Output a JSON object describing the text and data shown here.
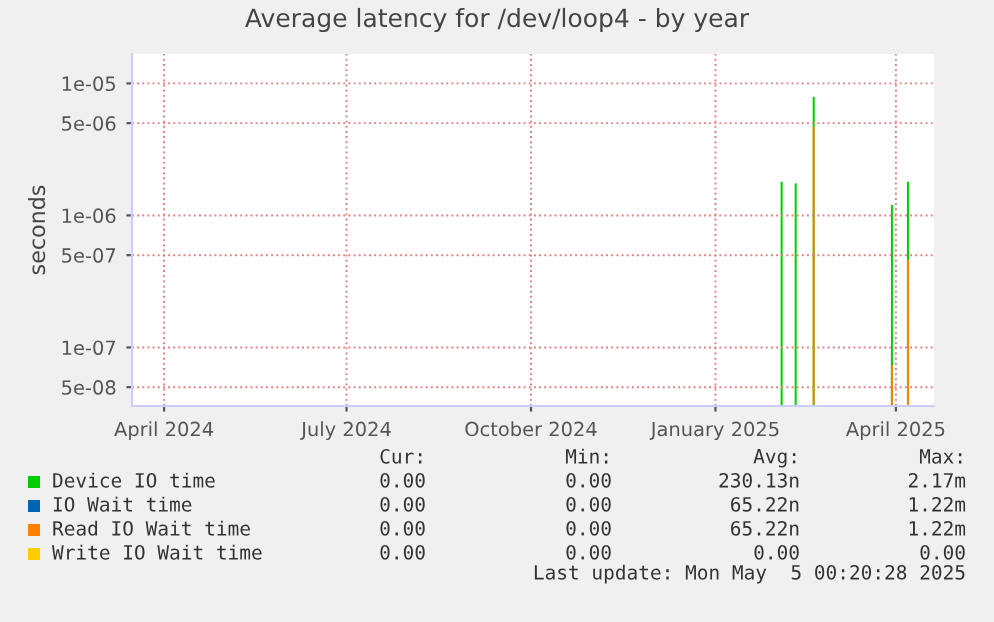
{
  "chart_data": {
    "type": "bar",
    "title": "Average latency for /dev/loop4 - by year",
    "ylabel": "seconds",
    "log": "y",
    "grid": true,
    "legend": "bottom",
    "xlim": [
      "2024-03-31",
      "2025-05-05"
    ],
    "xticks": [
      {
        "value": "2024-04-16",
        "label": "April 2024"
      },
      {
        "value": "2024-07-16",
        "label": "July 2024"
      },
      {
        "value": "2024-10-16",
        "label": "October 2024"
      },
      {
        "value": "2025-01-16",
        "label": "January 2025"
      },
      {
        "value": "2025-04-16",
        "label": "April 2025"
      }
    ],
    "ylim": [
      3.6e-08,
      1.67e-05
    ],
    "yticks": [
      {
        "value": 5e-08,
        "label": "5e-08"
      },
      {
        "value": 1e-07,
        "label": "1e-07"
      },
      {
        "value": 5e-07,
        "label": "5e-07"
      },
      {
        "value": 1e-06,
        "label": "1e-06"
      },
      {
        "value": 5e-06,
        "label": "5e-06"
      },
      {
        "value": 1e-05,
        "label": "1e-05"
      }
    ],
    "series": [
      {
        "name": "Device IO time",
        "color": "#00cc00",
        "x": [
          "2025-02-18",
          "2025-02-25",
          "2025-03-06",
          "2025-04-14",
          "2025-04-22"
        ],
        "values": [
          1.8e-06,
          1.75e-06,
          7.9e-06,
          1.2e-06,
          1.8e-06
        ]
      },
      {
        "name": "IO Wait time",
        "color": "#0066b3"
      },
      {
        "name": "Read IO Wait time",
        "color": "#ff8000",
        "x": [
          "2025-03-06",
          "2025-04-14",
          "2025-04-22"
        ],
        "values": [
          4.7e-06,
          7.3e-08,
          4.6e-07
        ]
      },
      {
        "name": "Write IO Wait time",
        "color": "#ffcc00"
      }
    ],
    "annotations": [
      "Cur:",
      "Min:",
      "Avg:",
      "Max:",
      "0.00",
      "0.00",
      "230.13n",
      "2.17m",
      "0.00",
      "0.00",
      "65.22n",
      "1.22m",
      "0.00",
      "0.00",
      "65.22n",
      "1.22m",
      "0.00",
      "0.00",
      "0.00",
      "0.00",
      "Last update: Mon May  5 00:20:28 2025"
    ]
  }
}
